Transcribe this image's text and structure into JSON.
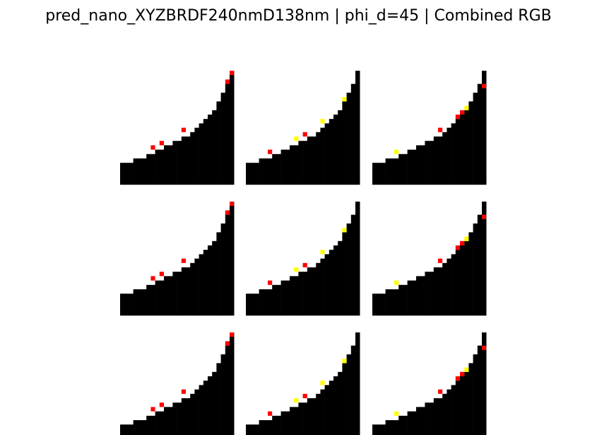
{
  "title": "pred_nano_XYZBRDF240nmD138nm | phi_d=45 | Combined RGB",
  "colors": {
    "background": "#ffffff",
    "shape": "#000000",
    "red_marker": "#ff0000",
    "yellow_marker": "#ffff00"
  },
  "grid": {
    "rows": 3,
    "cols": 3
  },
  "panels": [
    {
      "name": "panel-col-1",
      "markers": [
        {
          "col": 25,
          "row": 0,
          "color": "red"
        },
        {
          "col": 24,
          "row": 2,
          "color": "red"
        },
        {
          "col": 14,
          "row": 13,
          "color": "red"
        },
        {
          "col": 9,
          "row": 16,
          "color": "red"
        },
        {
          "col": 7,
          "row": 17,
          "color": "red"
        }
      ]
    },
    {
      "name": "panel-col-2",
      "markers": [
        {
          "col": 22,
          "row": 6,
          "color": "yellow"
        },
        {
          "col": 17,
          "row": 11,
          "color": "yellow"
        },
        {
          "col": 13,
          "row": 14,
          "color": "red"
        },
        {
          "col": 11,
          "row": 15,
          "color": "yellow"
        },
        {
          "col": 5,
          "row": 18,
          "color": "red"
        }
      ]
    },
    {
      "name": "panel-col-3",
      "markers": [
        {
          "col": 25,
          "row": 3,
          "color": "red"
        },
        {
          "col": 21,
          "row": 8,
          "color": "yellow"
        },
        {
          "col": 20,
          "row": 9,
          "color": "red"
        },
        {
          "col": 19,
          "row": 10,
          "color": "red"
        },
        {
          "col": 15,
          "row": 13,
          "color": "red"
        },
        {
          "col": 5,
          "row": 18,
          "color": "yellow"
        }
      ]
    }
  ]
}
